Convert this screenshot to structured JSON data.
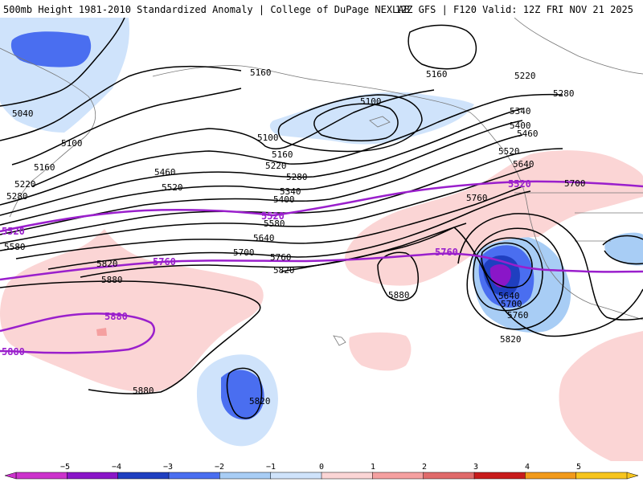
{
  "header": {
    "left_title": "500mb Height 1981-2010 Standardized Anomaly | College of DuPage NEXLAB",
    "right_title": "12Z GFS | F120 Valid: 12Z FRI NOV 21 2025"
  },
  "colors": {
    "neg5": "#cc33cc",
    "neg4": "#8a16c8",
    "neg3": "#1f3fc0",
    "neg2": "#4a6ef0",
    "neg1": "#a8cdf5",
    "neg0": "#cfe3fb",
    "pos0": "#fbd5d5",
    "pos1": "#f5a0a0",
    "pos2": "#e06a6a",
    "pos3": "#c81c1c",
    "pos4": "#f29a1a",
    "pos5": "#f7c51e",
    "contour": "#000000",
    "highlight": "#9a1fcc",
    "coast": "#666666"
  },
  "contour_labels": [
    "5040",
    "5100",
    "5160",
    "5220",
    "5280",
    "5340",
    "5400",
    "5460",
    "5520",
    "5580",
    "5640",
    "5700",
    "5760",
    "5820",
    "5880"
  ],
  "highlight_labels": [
    "5520",
    "5760",
    "5880"
  ],
  "colorbar": {
    "ticks": [
      "−5",
      "−4",
      "−3",
      "−2",
      "−1",
      "0",
      "1",
      "2",
      "3",
      "4",
      "5"
    ]
  }
}
